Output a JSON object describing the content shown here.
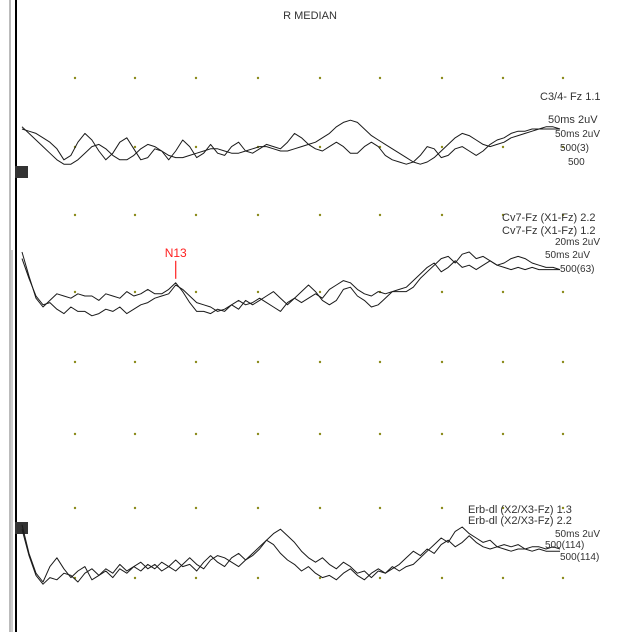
{
  "title": "R MEDIAN",
  "colors": {
    "trace": "#1a1a1a",
    "grid_dot": "#8a8a1a",
    "marker": "#ff2020",
    "axis": "#000000",
    "cursor": "#333333",
    "background": "#ffffff"
  },
  "chart_data": {
    "type": "line",
    "title": "R MEDIAN",
    "xlabel": "",
    "ylabel": "",
    "grid": "dots",
    "channels": [
      {
        "labels": [
          "C3/4- Fz 1.1",
          "50ms 2uV",
          "50ms 2uV",
          "500(3)",
          "500"
        ],
        "series": [
          {
            "name": "",
            "values": [
              0.6,
              0.3,
              0.0,
              -0.3,
              -0.6,
              -0.9,
              -1.1,
              -1.1,
              -0.9,
              -0.6,
              -0.3,
              -0.2,
              -0.4,
              -0.7,
              -0.9,
              -0.9,
              -0.7,
              -0.4,
              -0.2,
              -0.3,
              -0.5,
              -0.7,
              -0.8,
              -0.8,
              -0.7,
              -0.6,
              -0.5,
              -0.4,
              -0.4,
              -0.5,
              -0.6,
              -0.6,
              -0.5,
              -0.4,
              -0.3,
              -0.3,
              -0.4,
              -0.5,
              -0.5,
              -0.4,
              -0.3,
              -0.2,
              -0.1,
              0.1,
              0.3,
              0.6,
              0.8,
              0.9,
              0.8,
              0.5,
              0.2,
              0.0,
              -0.2,
              -0.4,
              -0.6,
              -0.8,
              -1.0,
              -1.1,
              -1.0,
              -0.8,
              -0.5,
              -0.2,
              0.1,
              0.3,
              0.2,
              0.0,
              -0.2,
              -0.3,
              -0.2,
              -0.1,
              0.1,
              0.2,
              0.3,
              0.4,
              0.5,
              0.6,
              0.6,
              0.5
            ]
          },
          {
            "name": "",
            "values": [
              0.5,
              0.4,
              0.3,
              0.1,
              -0.1,
              -0.4,
              -0.9,
              -0.7,
              -0.1,
              0.3,
              0.0,
              -0.5,
              -0.9,
              -0.6,
              -0.1,
              0.1,
              -0.4,
              -0.9,
              -0.8,
              -0.4,
              -0.5,
              -0.9,
              -0.5,
              0.0,
              -0.3,
              -0.8,
              -0.6,
              -0.2,
              -0.6,
              -0.7,
              -0.3,
              -0.1,
              -0.5,
              -0.6,
              -0.4,
              -0.2,
              -0.3,
              -0.4,
              -0.1,
              0.3,
              0.1,
              -0.2,
              -0.4,
              -0.5,
              -0.3,
              -0.1,
              -0.3,
              -0.6,
              -0.6,
              -0.3,
              -0.1,
              -0.3,
              -0.7,
              -0.9,
              -1.0,
              -1.1,
              -1.0,
              -0.7,
              -0.3,
              -0.4,
              -0.8,
              -0.7,
              -0.4,
              -0.3,
              -0.5,
              -0.7,
              -0.5,
              -0.2,
              0.0,
              0.1,
              0.3,
              0.4,
              0.4,
              0.5,
              0.5,
              0.5,
              0.5,
              0.5
            ]
          }
        ]
      },
      {
        "labels": [
          "Cv7-Fz (X1-Fz) 2.2",
          "Cv7-Fz (X1-Fz) 1.2",
          "20ms 2uV",
          "50ms 2uV",
          "500(63)"
        ],
        "marker": {
          "label": "N13",
          "index": 22
        },
        "series": [
          {
            "name": "",
            "values": [
              1.5,
              0.4,
              -0.6,
              -1.0,
              -0.7,
              -0.4,
              -0.5,
              -0.6,
              -0.4,
              -0.5,
              -0.5,
              -0.7,
              -0.4,
              -0.5,
              -0.6,
              -0.3,
              -0.5,
              -0.4,
              -0.2,
              -0.4,
              -0.4,
              -0.2,
              0.1,
              -0.3,
              -0.8,
              -1.2,
              -1.2,
              -1.3,
              -1.1,
              -1.2,
              -0.9,
              -1.1,
              -0.7,
              -0.9,
              -0.7,
              -0.5,
              -0.3,
              -0.6,
              -0.9,
              -0.6,
              -0.8,
              -0.6,
              -0.4,
              -0.6,
              -0.2,
              0.0,
              0.2,
              0.1,
              -0.2,
              -0.4,
              -0.5,
              -0.3,
              -0.4,
              -0.3,
              -0.3,
              -0.3,
              -0.1,
              0.3,
              0.6,
              0.9,
              1.2,
              1.3,
              1.0,
              1.4,
              1.5,
              1.2,
              1.3,
              1.1,
              0.9,
              1.0,
              1.2,
              1.3,
              1.2,
              1.0,
              0.9,
              0.8,
              0.8,
              0.7
            ]
          },
          {
            "name": "",
            "values": [
              1.2,
              0.3,
              -0.5,
              -0.9,
              -0.8,
              -1.1,
              -1.3,
              -1.0,
              -1.2,
              -1.2,
              -1.4,
              -1.3,
              -1.1,
              -1.2,
              -1.0,
              -1.3,
              -1.1,
              -0.9,
              -0.8,
              -0.6,
              -0.5,
              -0.4,
              0.0,
              -0.2,
              -0.5,
              -0.8,
              -0.9,
              -1.0,
              -1.2,
              -1.1,
              -0.9,
              -0.7,
              -0.9,
              -0.8,
              -0.6,
              -0.8,
              -1.0,
              -1.2,
              -0.8,
              -0.6,
              -0.3,
              0.0,
              -0.3,
              -0.7,
              -0.9,
              -0.7,
              -0.2,
              -0.1,
              -0.5,
              -0.7,
              -1.0,
              -0.9,
              -0.6,
              -0.3,
              -0.2,
              -0.1,
              0.2,
              0.5,
              0.8,
              1.0,
              0.6,
              0.8,
              1.1,
              0.8,
              0.9,
              0.7,
              0.9,
              1.1,
              0.9,
              0.8,
              0.7,
              0.8,
              0.7,
              0.8,
              0.7,
              0.7,
              0.7,
              0.7
            ]
          }
        ]
      },
      {
        "labels": [
          "Erb-dl (X2/X3-Fz) 1.3",
          "Erb-dl (X2/X3-Fz) 2.2",
          "50ms 2uV",
          "500(114)",
          "500(114)"
        ],
        "series": [
          {
            "name": "",
            "values": [
              1.6,
              0.3,
              -0.6,
              -1.0,
              -0.3,
              0.1,
              -0.4,
              -0.8,
              -0.5,
              -0.3,
              -0.9,
              -0.7,
              -0.4,
              -0.6,
              -0.2,
              -0.5,
              -0.3,
              -0.1,
              -0.4,
              -0.2,
              -0.5,
              -0.3,
              0.0,
              -0.3,
              -0.2,
              -0.5,
              -0.1,
              0.2,
              -0.1,
              -0.3,
              0.1,
              0.3,
              0.0,
              0.2,
              0.5,
              0.9,
              1.2,
              1.4,
              1.1,
              0.8,
              0.4,
              0.1,
              -0.1,
              0.1,
              -0.2,
              -0.4,
              -0.1,
              -0.3,
              -0.6,
              -0.5,
              -0.8,
              -0.5,
              -0.6,
              -0.3,
              -0.5,
              -0.3,
              -0.2,
              0.1,
              0.4,
              0.7,
              1.0,
              0.8,
              1.3,
              1.5,
              1.2,
              1.0,
              0.8,
              0.9,
              0.6,
              0.7,
              0.6,
              0.7,
              0.5,
              0.6,
              0.6,
              0.5,
              0.6,
              0.5
            ]
          },
          {
            "name": "",
            "values": [
              1.4,
              0.2,
              -0.7,
              -1.1,
              -0.8,
              -0.9,
              -0.6,
              -0.7,
              -1.0,
              -0.6,
              -0.4,
              -0.7,
              -0.5,
              -0.8,
              -0.4,
              -0.6,
              -0.3,
              -0.5,
              -0.2,
              -0.4,
              -0.1,
              -0.3,
              -0.5,
              -0.2,
              0.1,
              -0.2,
              -0.4,
              0.0,
              0.2,
              0.1,
              -0.1,
              -0.3,
              0.0,
              0.3,
              0.6,
              0.9,
              0.7,
              0.3,
              0.0,
              -0.2,
              -0.5,
              -0.3,
              -0.6,
              -0.8,
              -0.7,
              -0.9,
              -0.6,
              -0.4,
              -0.7,
              -0.9,
              -0.6,
              -0.4,
              -0.6,
              -0.4,
              -0.2,
              0.1,
              0.4,
              0.2,
              0.5,
              0.3,
              0.7,
              0.9,
              0.6,
              0.8,
              1.1,
              0.8,
              0.6,
              0.5,
              0.6,
              0.5,
              0.4,
              0.5,
              0.5,
              0.4,
              0.5,
              0.4,
              0.4,
              0.4
            ]
          }
        ]
      }
    ]
  }
}
